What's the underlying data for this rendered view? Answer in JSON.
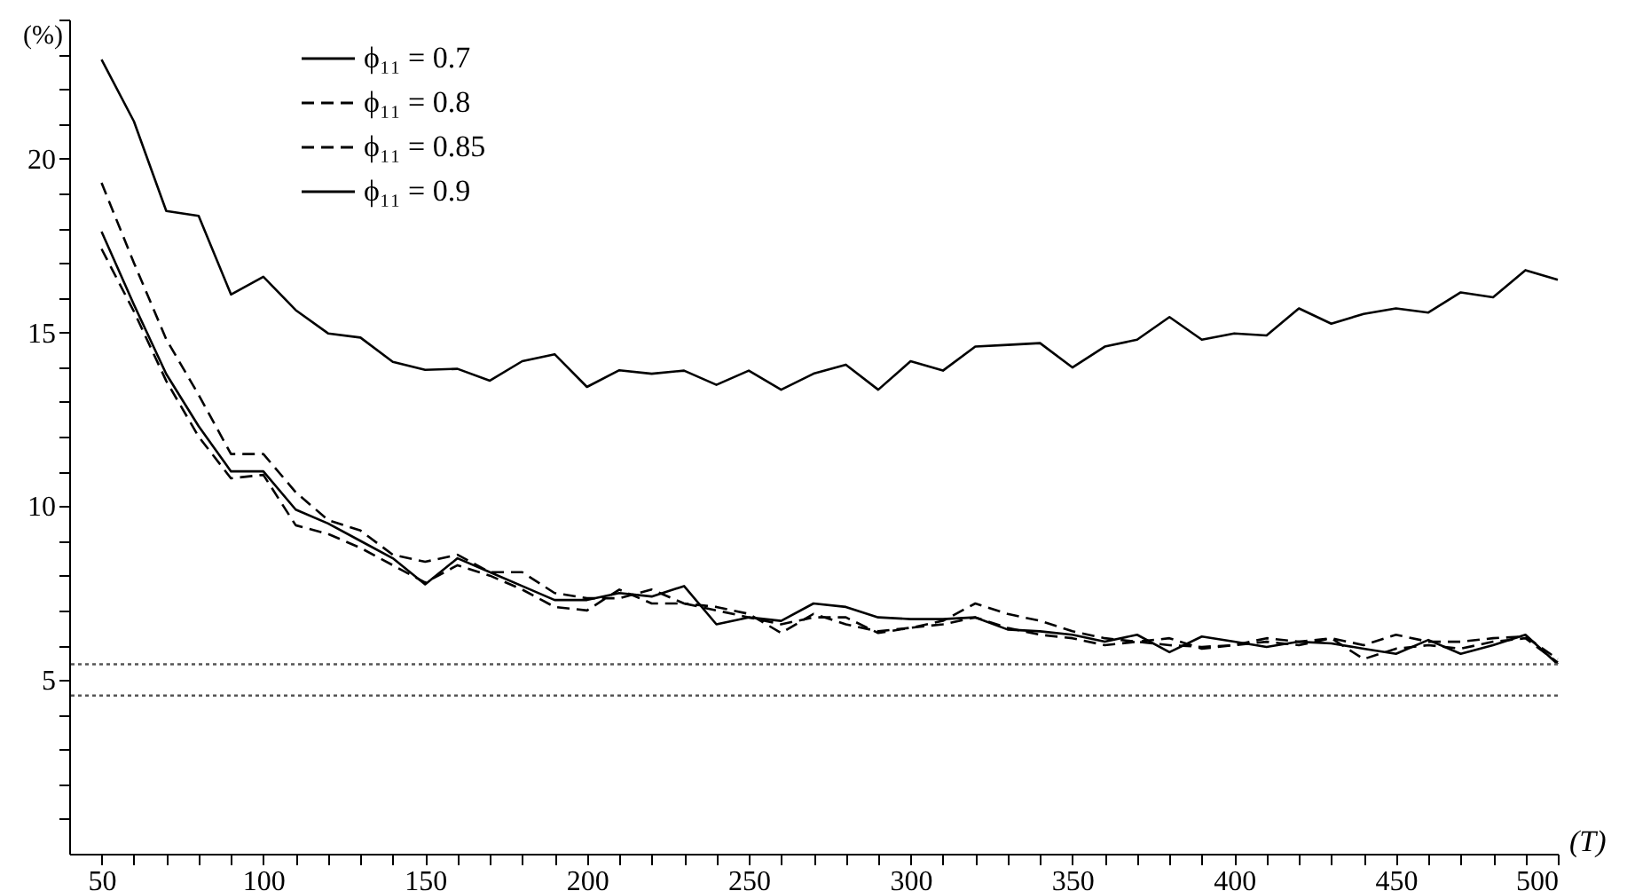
{
  "chart_data": {
    "type": "line",
    "xlabel": "(T)",
    "ylabel": "(%)",
    "legend": "top left",
    "grid": false,
    "x": [
      50,
      60,
      70,
      80,
      90,
      100,
      110,
      120,
      130,
      140,
      150,
      160,
      170,
      180,
      190,
      200,
      210,
      220,
      230,
      240,
      250,
      260,
      270,
      280,
      290,
      300,
      310,
      320,
      330,
      340,
      350,
      360,
      370,
      380,
      390,
      400,
      410,
      420,
      430,
      440,
      450,
      460,
      470,
      480,
      490,
      500
    ],
    "xlim": [
      40,
      500
    ],
    "ylim": [
      0,
      24
    ],
    "xticks": [
      50,
      {
        "value": 60,
        "label": null
      },
      {
        "value": 70,
        "label": null
      },
      {
        "value": 80,
        "label": null
      },
      {
        "value": 90,
        "label": null
      },
      100,
      {
        "value": 110,
        "label": null
      },
      {
        "value": 120,
        "label": null
      },
      {
        "value": 130,
        "label": null
      },
      {
        "value": 140,
        "label": null
      },
      150,
      {
        "value": 160,
        "label": null
      },
      {
        "value": 170,
        "label": null
      },
      {
        "value": 180,
        "label": null
      },
      {
        "value": 190,
        "label": null
      },
      200,
      {
        "value": 210,
        "label": null
      },
      {
        "value": 220,
        "label": null
      },
      {
        "value": 230,
        "label": null
      },
      {
        "value": 240,
        "label": null
      },
      250,
      {
        "value": 260,
        "label": null
      },
      {
        "value": 270,
        "label": null
      },
      {
        "value": 280,
        "label": null
      },
      {
        "value": 290,
        "label": null
      },
      300,
      {
        "value": 310,
        "label": null
      },
      {
        "value": 320,
        "label": null
      },
      {
        "value": 330,
        "label": null
      },
      {
        "value": 340,
        "label": null
      },
      350,
      {
        "value": 360,
        "label": null
      },
      {
        "value": 370,
        "label": null
      },
      {
        "value": 380,
        "label": null
      },
      {
        "value": 390,
        "label": null
      },
      400,
      {
        "value": 410,
        "label": null
      },
      {
        "value": 420,
        "label": null
      },
      {
        "value": 430,
        "label": null
      },
      {
        "value": 440,
        "label": null
      },
      450,
      {
        "value": 460,
        "label": null
      },
      {
        "value": 470,
        "label": null
      },
      {
        "value": 480,
        "label": null
      },
      {
        "value": 490,
        "label": null
      },
      500
    ],
    "yticks": [
      {
        "value": 1,
        "label": null
      },
      {
        "value": 2,
        "label": null
      },
      {
        "value": 3,
        "label": null
      },
      {
        "value": 4,
        "label": null
      },
      5,
      {
        "value": 6,
        "label": null
      },
      {
        "value": 7,
        "label": null
      },
      {
        "value": 8,
        "label": null
      },
      {
        "value": 9,
        "label": null
      },
      10,
      {
        "value": 11,
        "label": null
      },
      {
        "value": 12,
        "label": null
      },
      {
        "value": 13,
        "label": null
      },
      {
        "value": 14,
        "label": null
      },
      15,
      {
        "value": 16,
        "label": null
      },
      {
        "value": 17,
        "label": null
      },
      {
        "value": 18,
        "label": null
      },
      {
        "value": 19,
        "label": null
      },
      20,
      {
        "value": 21,
        "label": null
      },
      {
        "value": 22,
        "label": null
      },
      {
        "value": 23,
        "label": null
      },
      {
        "value": 24,
        "label": null
      }
    ],
    "series": [
      {
        "name": "ϕ₁₁ = 0.7",
        "color": "#000000",
        "line_style": "solid",
        "values": [
          17.9,
          15.8,
          13.8,
          12.3,
          11.0,
          11.0,
          9.9,
          9.5,
          9.0,
          8.5,
          7.75,
          8.5,
          8.1,
          7.7,
          7.3,
          7.3,
          7.5,
          7.4,
          7.7,
          6.6,
          6.8,
          6.7,
          7.2,
          7.1,
          6.8,
          6.75,
          6.75,
          6.8,
          6.45,
          6.4,
          6.3,
          6.1,
          6.3,
          5.8,
          6.25,
          6.1,
          5.95,
          6.1,
          6.05,
          5.9,
          5.75,
          6.15,
          5.75,
          6.0,
          6.3,
          5.45
        ]
      },
      {
        "name": "ϕ₁₁ = 0.8",
        "color": "#000000",
        "line_style": "dashed",
        "values": [
          17.4,
          15.6,
          13.6,
          12.0,
          10.8,
          10.9,
          9.45,
          9.2,
          8.8,
          8.3,
          7.8,
          8.3,
          8.0,
          7.6,
          7.1,
          7.0,
          7.6,
          7.2,
          7.2,
          7.0,
          6.8,
          6.6,
          6.8,
          6.8,
          6.35,
          6.5,
          6.6,
          6.8,
          6.5,
          6.3,
          6.2,
          6.0,
          6.1,
          6.2,
          5.9,
          6.0,
          6.1,
          6.0,
          6.2,
          5.6,
          5.9,
          6.0,
          5.9,
          6.1,
          6.2,
          5.5
        ]
      },
      {
        "name": "ϕ₁₁ = 0.85",
        "color": "#000000",
        "line_style": "dashed",
        "values": [
          19.3,
          17.0,
          14.8,
          13.2,
          11.5,
          11.5,
          10.4,
          9.6,
          9.3,
          8.6,
          8.4,
          8.6,
          8.1,
          8.1,
          7.5,
          7.35,
          7.35,
          7.6,
          7.2,
          7.1,
          6.9,
          6.35,
          6.9,
          6.6,
          6.4,
          6.5,
          6.7,
          7.2,
          6.9,
          6.7,
          6.4,
          6.2,
          6.1,
          6.0,
          5.95,
          6.0,
          6.2,
          6.1,
          6.2,
          6.0,
          6.3,
          6.1,
          6.1,
          6.2,
          6.25,
          5.6
        ]
      },
      {
        "name": "ϕ₁₁ = 0.9",
        "color": "#000000",
        "line_style": "solid",
        "values": [
          22.85,
          21.07,
          18.49,
          18.35,
          16.09,
          16.6,
          15.64,
          14.97,
          14.85,
          14.15,
          13.92,
          13.95,
          13.61,
          14.17,
          14.37,
          13.43,
          13.91,
          13.81,
          13.9,
          13.49,
          13.9,
          13.35,
          13.81,
          14.07,
          13.35,
          14.17,
          13.9,
          14.59,
          14.64,
          14.69,
          13.99,
          14.59,
          14.79,
          15.44,
          14.79,
          14.97,
          14.91,
          15.69,
          15.25,
          15.53,
          15.69,
          15.57,
          16.15,
          16.01,
          16.79,
          16.51
        ]
      }
    ],
    "ref_lines": [
      {
        "axis": "y",
        "value": 5.45,
        "color": "#555555",
        "line_style": "dotted"
      },
      {
        "axis": "y",
        "value": 4.55,
        "color": "#555555",
        "line_style": "dotted"
      }
    ]
  }
}
